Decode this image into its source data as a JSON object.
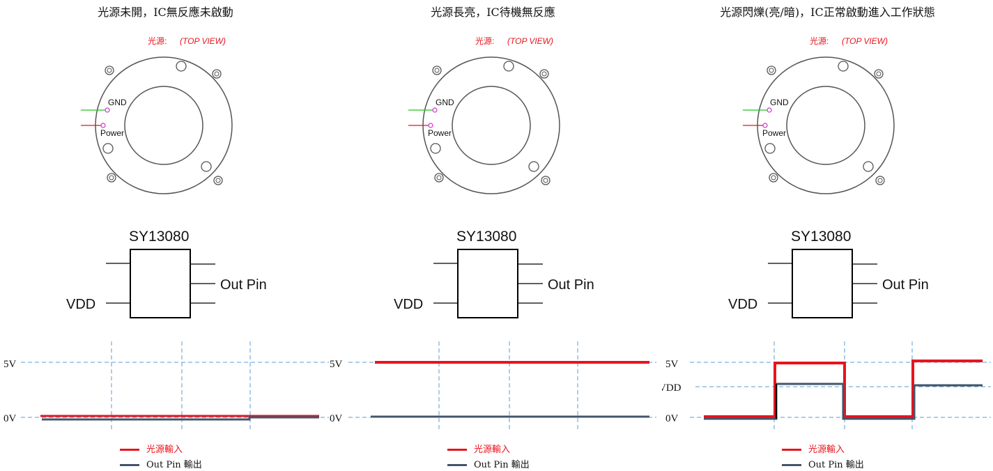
{
  "panels": [
    {
      "title": "光源未開，IC無反應未啟動",
      "source_label": "光源:",
      "view_label": "(TOP VIEW)",
      "gnd_label": "GND",
      "power_label": "Power",
      "chip_name": "SY13080",
      "vdd_label": "VDD",
      "out_label": "Out Pin",
      "levels": [
        "5V",
        "0V"
      ],
      "legend_input": "光源輸入",
      "legend_output": "Out Pin 輸出"
    },
    {
      "title": "光源長亮，IC待機無反應",
      "source_label": "光源:",
      "view_label": "(TOP VIEW)",
      "gnd_label": "GND",
      "power_label": "Power",
      "chip_name": "SY13080",
      "vdd_label": "VDD",
      "out_label": "Out Pin",
      "levels": [
        "5V",
        "0V"
      ],
      "legend_input": "光源輸入",
      "legend_output": "Out Pin 輸出"
    },
    {
      "title": "光源閃爍(亮/暗)，IC正常啟動進入工作狀態",
      "source_label": "光源:",
      "view_label": "(TOP VIEW)",
      "gnd_label": "GND",
      "power_label": "Power",
      "chip_name": "SY13080",
      "vdd_label": "VDD",
      "out_label": "Out Pin",
      "levels": [
        "5V",
        "VDD",
        "0V"
      ],
      "legend_input": "光源輸入",
      "legend_output": "Out Pin 輸出"
    }
  ],
  "colors": {
    "input_line": "#e8141c",
    "output_line": "#44546a",
    "grid": "#5b9bd5",
    "label_red": "#e8141c",
    "gnd_wire": "#22c322",
    "pad": "#cc33cc"
  }
}
